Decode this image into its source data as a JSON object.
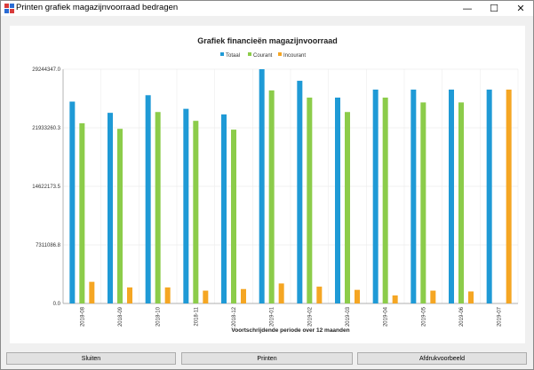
{
  "window": {
    "title": "Printen grafiek magazijnvoorraad bedragen",
    "minimize_glyph": "—",
    "maximize_glyph": "☐",
    "close_glyph": "✕"
  },
  "buttons": {
    "close_label": "Sluiten",
    "print_label": "Printen",
    "preview_label": "Afdrukvoorbeeld"
  },
  "colors": {
    "totaal": "#1f9ad6",
    "courant": "#8ccc4a",
    "incourant": "#f5a623"
  },
  "chart_data": {
    "type": "bar",
    "title": "Grafiek financieën magazijnvoorraad",
    "xlabel": "Voortschrijdende periode over 12 maanden",
    "ylabel": "",
    "ylim": [
      0,
      29244347.0
    ],
    "yticks": [
      0,
      7311086.8,
      14622173.5,
      21933260.3,
      29244347.0
    ],
    "ytick_labels": [
      "0.0",
      "7311086.8",
      "14622173.5",
      "21933260.3",
      "29244347.0"
    ],
    "legend_position": "top-center",
    "grid": true,
    "categories": [
      "2018-08",
      "2018-09",
      "2018-10",
      "2018-11",
      "2018-12",
      "2019-01",
      "2019-02",
      "2019-03",
      "2019-04",
      "2019-05",
      "2019-06",
      "2019-07"
    ],
    "series": [
      {
        "name": "Totaal",
        "color": "#1f9ad6",
        "values": [
          25200000,
          23800000,
          26000000,
          24300000,
          23600000,
          29244347,
          27800000,
          25700000,
          26700000,
          26700000,
          26700000,
          26700000
        ]
      },
      {
        "name": "Courant",
        "color": "#8ccc4a",
        "values": [
          22500000,
          21800000,
          23900000,
          22800000,
          21700000,
          26600000,
          25700000,
          23900000,
          25700000,
          25100000,
          25100000,
          0
        ]
      },
      {
        "name": "Incourant",
        "color": "#f5a623",
        "values": [
          2700000,
          2000000,
          2000000,
          1600000,
          1800000,
          2500000,
          2100000,
          1700000,
          1000000,
          1600000,
          1500000,
          26700000
        ]
      }
    ]
  }
}
